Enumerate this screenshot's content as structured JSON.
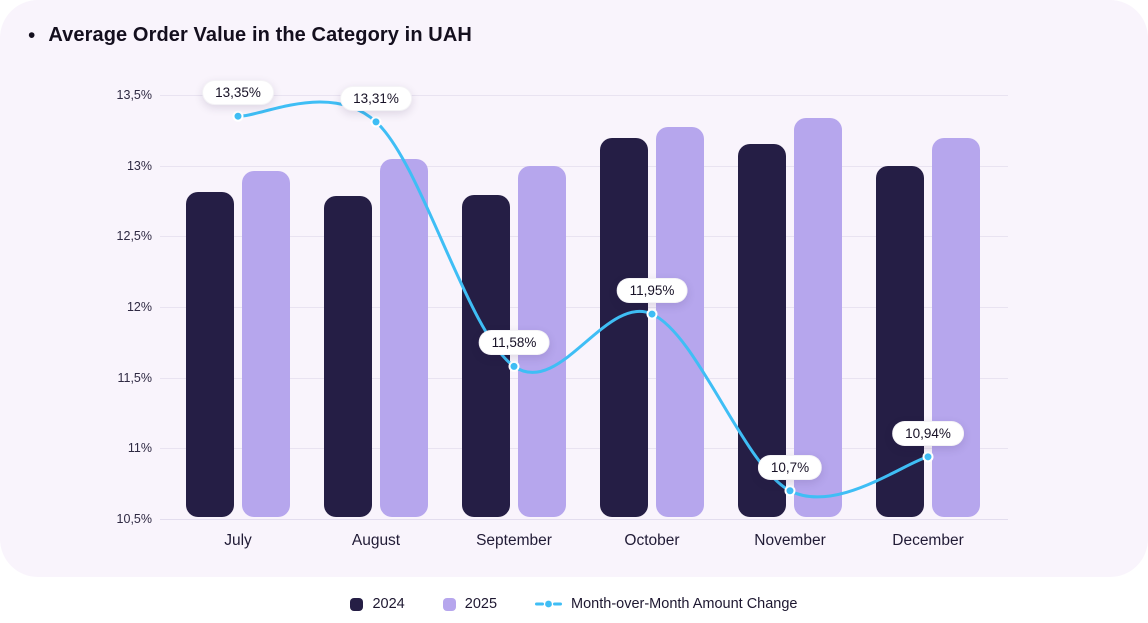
{
  "title": {
    "bullet": "•",
    "text": "Average Order Value in the Category in UAH"
  },
  "chart_data": {
    "type": "bar",
    "subtype": "grouped bars with overlaid line",
    "title": "Average Order Value in the Category in UAH",
    "categories": [
      "July",
      "August",
      "September",
      "October",
      "November",
      "December"
    ],
    "series": [
      {
        "name": "2024",
        "type": "bar",
        "color": "#251e45",
        "values": [
          12.8,
          12.77,
          12.78,
          13.18,
          13.14,
          12.98
        ]
      },
      {
        "name": "2025",
        "type": "bar",
        "color": "#b6a6ed",
        "values": [
          12.95,
          13.03,
          12.98,
          13.26,
          13.32,
          13.18
        ]
      },
      {
        "name": "Month-over-Month Amount Change",
        "type": "line",
        "color": "#3fbef5",
        "values": [
          13.35,
          13.31,
          11.58,
          11.95,
          10.7,
          10.94
        ],
        "labels": [
          "13,35%",
          "13,31%",
          "11,58%",
          "11,95%",
          "10,7%",
          "10,94%"
        ]
      }
    ],
    "ylim": [
      10.5,
      13.5
    ],
    "yticks": {
      "values": [
        13.5,
        13.0,
        12.5,
        12.0,
        11.5,
        11.0,
        10.5
      ],
      "labels": [
        "13,5%",
        "13%",
        "12,5%",
        "12%",
        "11,5%",
        "11%",
        "10,5%"
      ]
    },
    "xlabel": "",
    "ylabel": "",
    "grid": true,
    "legend_position": "bottom",
    "colors": {
      "card_background": "#f9f4fc",
      "page_background": "#ffffff",
      "gridline": "#e9e3f1",
      "bar_2024": "#251e45",
      "bar_2025": "#b6a6ed",
      "line": "#3fbef5",
      "tooltip_background": "#ffffff",
      "text": "#140f1e"
    }
  }
}
